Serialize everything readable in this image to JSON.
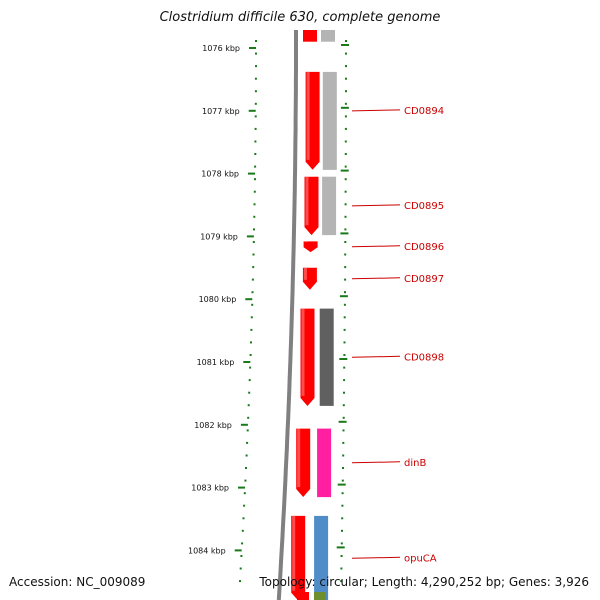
{
  "title": "Clostridium difficile 630, complete genome",
  "accession": "Accession: NC_009089",
  "summary": "Topology: circular; Length: 4,290,252 bp; Genes: 3,926",
  "ticks": [
    {
      "kbp": 1076,
      "label": "1076 kbp"
    },
    {
      "kbp": 1077,
      "label": "1077 kbp"
    },
    {
      "kbp": 1078,
      "label": "1078 kbp"
    },
    {
      "kbp": 1079,
      "label": "1079 kbp"
    },
    {
      "kbp": 1080,
      "label": "1080 kbp"
    },
    {
      "kbp": 1081,
      "label": "1081 kbp"
    },
    {
      "kbp": 1082,
      "label": "1082 kbp"
    },
    {
      "kbp": 1083,
      "label": "1083 kbp"
    },
    {
      "kbp": 1084,
      "label": "1084 kbp"
    }
  ],
  "genes": [
    {
      "name": "CD0894",
      "start_kbp": 1076.38,
      "end_kbp": 1077.94,
      "cog_color": "#b4b4b4"
    },
    {
      "name": "CD0895",
      "start_kbp": 1078.05,
      "end_kbp": 1078.98,
      "cog_color": "#b4b4b4"
    },
    {
      "name": "CD0896",
      "start_kbp": 1079.08,
      "end_kbp": 1079.25,
      "cog_color": ""
    },
    {
      "name": "CD0897",
      "start_kbp": 1079.5,
      "end_kbp": 1079.85,
      "cog_color": ""
    },
    {
      "name": "CD0898",
      "start_kbp": 1080.15,
      "end_kbp": 1081.7,
      "cog_color": "#606060"
    },
    {
      "name": "dinB",
      "start_kbp": 1082.06,
      "end_kbp": 1083.15,
      "cog_color": "#ff1fa0"
    },
    {
      "name": "opuCA",
      "start_kbp": 1083.45,
      "end_kbp": 1084.8,
      "cog_color": "#4f8cc8"
    }
  ],
  "partial_gene_top": {
    "end_kbp": 1075.9,
    "cog_color": "#b4b4b4"
  },
  "trailing_segment": {
    "cog_color": "#6f8f2f"
  },
  "colors": {
    "gene": "#ff0000",
    "tick": "#1a7a1a",
    "label": "#cc0000",
    "backbone": "#808080"
  }
}
